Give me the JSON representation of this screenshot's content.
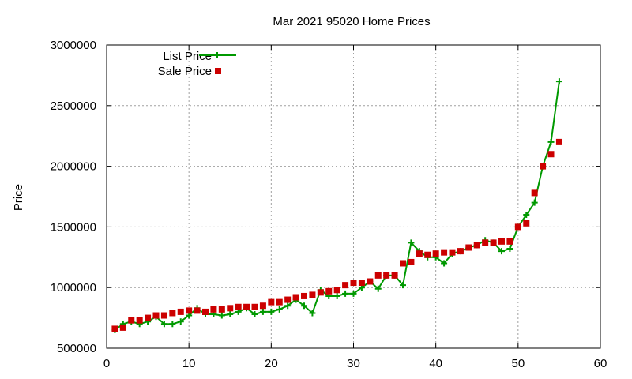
{
  "chart_data": {
    "type": "line",
    "title": "Mar 2021 95020 Home Prices",
    "xlabel": "",
    "ylabel": "Price",
    "xlim": [
      0,
      60
    ],
    "ylim": [
      500000,
      3000000
    ],
    "xticks": [
      0,
      10,
      20,
      30,
      40,
      50,
      60
    ],
    "yticks": [
      500000,
      1000000,
      1500000,
      2000000,
      2500000,
      3000000
    ],
    "grid": true,
    "legend_position": "top-left",
    "series": [
      {
        "name": "List Price",
        "style": "line-plus",
        "color": "#009900",
        "x": [
          1,
          2,
          3,
          4,
          5,
          6,
          7,
          8,
          9,
          10,
          11,
          12,
          13,
          14,
          15,
          16,
          17,
          18,
          19,
          20,
          21,
          22,
          23,
          24,
          25,
          26,
          27,
          28,
          29,
          30,
          31,
          32,
          33,
          34,
          35,
          36,
          37,
          38,
          39,
          40,
          41,
          42,
          43,
          44,
          45,
          46,
          47,
          48,
          49,
          50,
          51,
          52,
          53,
          54,
          55
        ],
        "y": [
          650000,
          700000,
          720000,
          700000,
          720000,
          760000,
          700000,
          700000,
          720000,
          770000,
          830000,
          780000,
          780000,
          770000,
          780000,
          800000,
          830000,
          780000,
          800000,
          800000,
          820000,
          850000,
          900000,
          850000,
          790000,
          980000,
          930000,
          930000,
          950000,
          950000,
          1000000,
          1050000,
          990000,
          1100000,
          1100000,
          1020000,
          1370000,
          1300000,
          1250000,
          1250000,
          1200000,
          1280000,
          1300000,
          1330000,
          1350000,
          1390000,
          1370000,
          1300000,
          1320000,
          1500000,
          1600000,
          1700000,
          2000000,
          2200000,
          2700000
        ]
      },
      {
        "name": "Sale Price",
        "style": "square",
        "color": "#cc0000",
        "x": [
          1,
          2,
          3,
          4,
          5,
          6,
          7,
          8,
          9,
          10,
          11,
          12,
          13,
          14,
          15,
          16,
          17,
          18,
          19,
          20,
          21,
          22,
          23,
          24,
          25,
          26,
          27,
          28,
          29,
          30,
          31,
          32,
          33,
          34,
          35,
          36,
          37,
          38,
          39,
          40,
          41,
          42,
          43,
          44,
          45,
          46,
          47,
          48,
          49,
          50,
          51,
          52,
          53,
          54,
          55
        ],
        "y": [
          660000,
          670000,
          730000,
          730000,
          750000,
          770000,
          770000,
          790000,
          800000,
          810000,
          810000,
          800000,
          820000,
          820000,
          830000,
          840000,
          840000,
          840000,
          850000,
          880000,
          880000,
          900000,
          920000,
          930000,
          940000,
          960000,
          970000,
          980000,
          1020000,
          1040000,
          1040000,
          1050000,
          1100000,
          1100000,
          1100000,
          1200000,
          1210000,
          1280000,
          1270000,
          1280000,
          1290000,
          1290000,
          1300000,
          1330000,
          1350000,
          1370000,
          1370000,
          1380000,
          1380000,
          1500000,
          1530000,
          1780000,
          2000000,
          2100000,
          2200000
        ]
      }
    ]
  }
}
